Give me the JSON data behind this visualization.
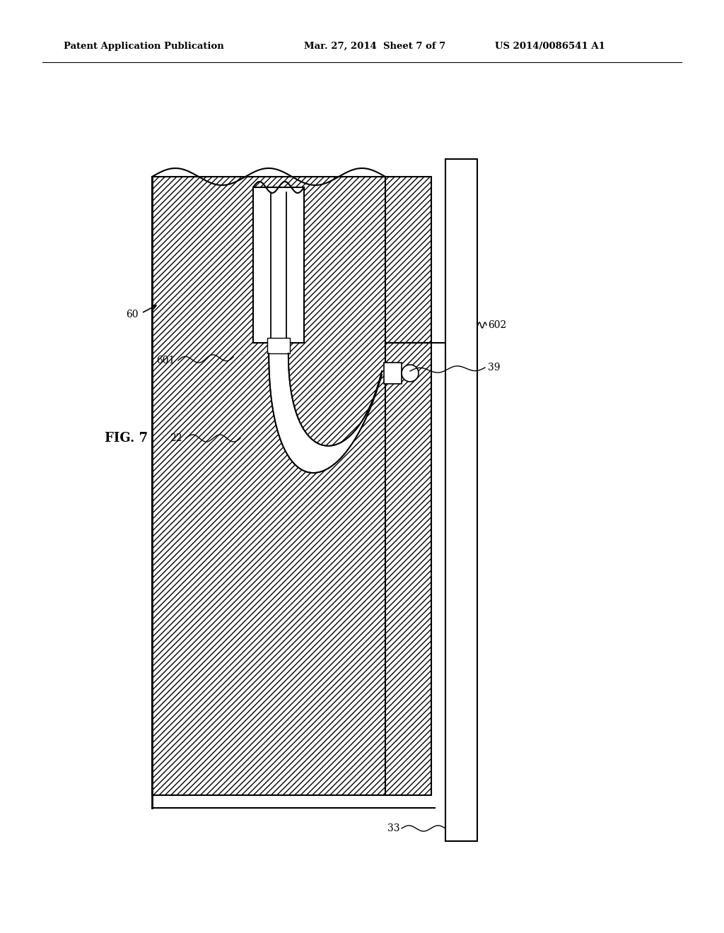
{
  "background_color": "#ffffff",
  "header_left": "Patent Application Publication",
  "header_center": "Mar. 27, 2014  Sheet 7 of 7",
  "header_right": "US 2014/0086541 A1",
  "fig_label": "FIG. 7",
  "line_color": "#000000",
  "hatch_pattern": "////"
}
